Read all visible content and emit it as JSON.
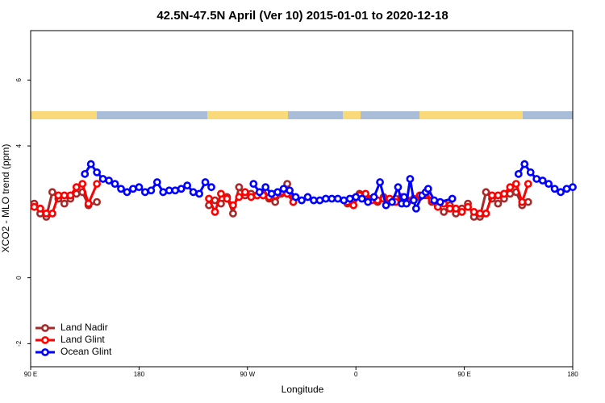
{
  "chart_data": {
    "type": "line",
    "title": "42.5N-47.5N April (Ver 10)   2015-01-01 to 2020-12-18",
    "x_label": "Longitude",
    "y_label": "XCO2 - MLO trend (ppm)",
    "xlim": [
      90,
      540
    ],
    "xticks": [
      {
        "value": 90,
        "label": "90 E"
      },
      {
        "value": 180,
        "label": "180"
      },
      {
        "value": 270,
        "label": "90 W"
      },
      {
        "value": 360,
        "label": "0"
      },
      {
        "value": 450,
        "label": "90 E"
      },
      {
        "value": 540,
        "label": "180"
      }
    ],
    "ylim": [
      -2.7,
      7.5
    ],
    "yticks": [
      -2,
      0,
      4,
      6
    ],
    "legend": "bottom-left",
    "series": [
      {
        "name": "Land Nadir",
        "color": "#a52a2a",
        "x": [
          93,
          98,
          103,
          108,
          113,
          118,
          123,
          128,
          133,
          138,
          145,
          190,
          238,
          243,
          248,
          253,
          258,
          263,
          268,
          273,
          278,
          283,
          288,
          293,
          298,
          303,
          308,
          330,
          353,
          358,
          363,
          368,
          373,
          378,
          383,
          388,
          393,
          398,
          403,
          408,
          413,
          418,
          423,
          428,
          433,
          438,
          443,
          448,
          453,
          458,
          463,
          468,
          473,
          478,
          483,
          488,
          493,
          498,
          503
        ],
        "values": [
          2.25,
          1.95,
          1.85,
          2.6,
          2.4,
          2.25,
          2.4,
          2.55,
          2.6,
          2.2,
          2.3,
          null,
          2.2,
          2.35,
          2.25,
          2.45,
          1.95,
          2.75,
          2.5,
          2.55,
          2.5,
          2.55,
          2.4,
          2.3,
          2.55,
          2.85,
          2.3,
          null,
          2.25,
          2.4,
          2.55,
          2.5,
          2.4,
          2.3,
          2.45,
          2.35,
          2.4,
          2.3,
          2.35,
          2.4,
          2.45,
          2.5,
          2.3,
          2.2,
          2.0,
          2.2,
          1.95,
          2.1,
          2.25,
          1.85,
          1.85,
          2.6,
          2.4,
          2.25,
          2.4,
          2.55,
          2.6,
          2.2,
          2.3
        ]
      },
      {
        "name": "Land Glint",
        "color": "#ff0000",
        "x": [
          93,
          98,
          103,
          108,
          113,
          118,
          123,
          128,
          133,
          138,
          145,
          190,
          238,
          243,
          248,
          253,
          258,
          263,
          268,
          273,
          278,
          283,
          288,
          293,
          298,
          303,
          308,
          330,
          353,
          358,
          363,
          368,
          373,
          378,
          383,
          388,
          393,
          398,
          403,
          408,
          413,
          418,
          423,
          428,
          433,
          438,
          443,
          448,
          453,
          458,
          463,
          468,
          473,
          478,
          483,
          488,
          493,
          498,
          503
        ],
        "values": [
          2.15,
          2.1,
          1.95,
          1.95,
          2.5,
          2.5,
          2.5,
          2.75,
          2.85,
          2.25,
          2.85,
          null,
          2.4,
          2.0,
          2.55,
          2.4,
          2.2,
          2.45,
          2.6,
          2.45,
          2.5,
          2.5,
          2.45,
          2.5,
          2.6,
          2.55,
          2.3,
          null,
          2.3,
          2.2,
          2.5,
          2.55,
          2.35,
          2.35,
          2.4,
          2.4,
          2.3,
          2.45,
          2.3,
          2.35,
          2.5,
          2.55,
          2.35,
          2.15,
          2.25,
          2.1,
          2.1,
          2.0,
          2.15,
          2.0,
          1.95,
          1.95,
          2.5,
          2.5,
          2.55,
          2.75,
          2.85,
          2.3,
          2.85
        ]
      },
      {
        "name": "Ocean Glint",
        "color": "#0000ff",
        "x": [
          135,
          140,
          145,
          150,
          155,
          160,
          165,
          170,
          175,
          180,
          185,
          190,
          195,
          200,
          205,
          210,
          215,
          220,
          225,
          230,
          235,
          240,
          255,
          275,
          280,
          285,
          290,
          295,
          300,
          305,
          310,
          315,
          320,
          325,
          330,
          335,
          340,
          345,
          350,
          355,
          360,
          365,
          370,
          375,
          380,
          385,
          390,
          395,
          398,
          400,
          402,
          405,
          408,
          410,
          415,
          418,
          420,
          425,
          430,
          440,
          470,
          495,
          500,
          505,
          510,
          515,
          520,
          525,
          530,
          535,
          540
        ],
        "values": [
          3.15,
          3.45,
          3.2,
          3.0,
          2.95,
          2.85,
          2.7,
          2.6,
          2.7,
          2.75,
          2.6,
          2.65,
          2.9,
          2.6,
          2.65,
          2.65,
          2.7,
          2.8,
          2.6,
          2.55,
          2.9,
          2.75,
          null,
          2.85,
          2.6,
          2.75,
          2.55,
          2.6,
          2.7,
          2.65,
          2.45,
          2.35,
          2.45,
          2.35,
          2.35,
          2.4,
          2.4,
          2.4,
          2.35,
          2.4,
          2.45,
          2.4,
          2.3,
          2.45,
          2.9,
          2.2,
          2.3,
          2.75,
          2.25,
          2.45,
          2.25,
          3.0,
          2.35,
          2.1,
          2.5,
          2.6,
          2.7,
          2.35,
          2.3,
          2.4,
          null,
          3.15,
          3.45,
          3.2,
          3.0,
          2.95,
          2.85,
          2.7,
          2.6,
          2.7,
          2.75
        ]
      }
    ]
  }
}
